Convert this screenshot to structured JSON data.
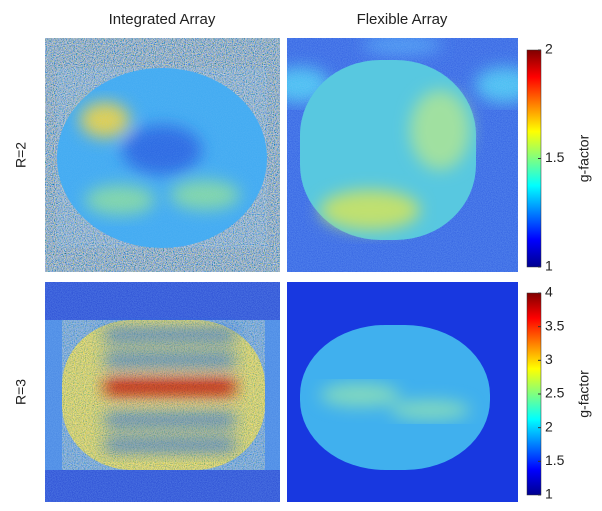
{
  "columns": [
    "Integrated Array",
    "Flexible Array"
  ],
  "rows": [
    {
      "label": "R=2",
      "colorbar": {
        "label": "g-factor",
        "lim": [
          1,
          2
        ],
        "ticks": [
          1,
          1.5,
          2
        ]
      }
    },
    {
      "label": "R=3",
      "colorbar": {
        "label": "g-factor",
        "lim": [
          1,
          4
        ],
        "ticks": [
          1,
          1.5,
          2,
          2.5,
          3,
          3.5,
          4
        ]
      }
    }
  ]
}
